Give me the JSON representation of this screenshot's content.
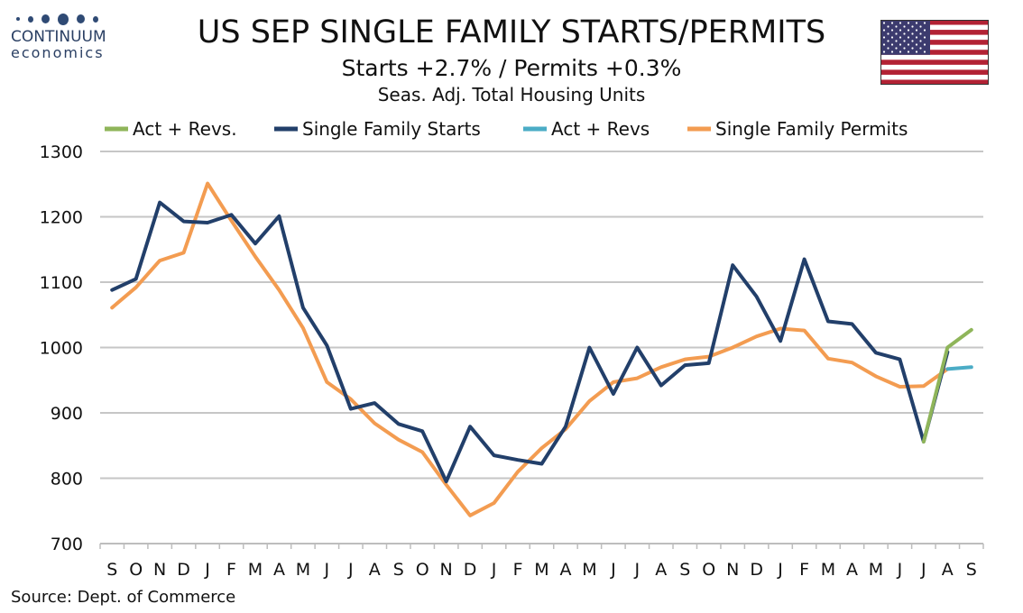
{
  "logo": {
    "line1": "CONTINUUM",
    "line2": "economics"
  },
  "header": {
    "title": "US SEP SINGLE FAMILY STARTS/PERMITS",
    "subtitle": "Starts  +2.7% / Permits +0.3%",
    "subtitle2": "Seas. Adj. Total Housing Units"
  },
  "flag": {
    "icon": "us-flag-icon"
  },
  "footer": {
    "source": "Source: Dept. of Commerce"
  },
  "chart_data": {
    "type": "line",
    "categories": [
      "S",
      "O",
      "N",
      "D",
      "J",
      "F",
      "M",
      "A",
      "M",
      "J",
      "J",
      "A",
      "S",
      "O",
      "N",
      "D",
      "J",
      "F",
      "M",
      "A",
      "M",
      "J",
      "J",
      "A",
      "S",
      "O",
      "N",
      "D",
      "J",
      "F",
      "M",
      "A",
      "M",
      "J",
      "J",
      "A",
      "S"
    ],
    "ylim": [
      700,
      1300
    ],
    "yticks": [
      700,
      800,
      900,
      1000,
      1100,
      1200,
      1300
    ],
    "grid": true,
    "legend_position": "top",
    "series": [
      {
        "name": "Act + Revs.",
        "color": "#8fb55a",
        "values": [
          null,
          null,
          null,
          null,
          null,
          null,
          null,
          null,
          null,
          null,
          null,
          null,
          null,
          null,
          null,
          null,
          null,
          null,
          null,
          null,
          null,
          null,
          null,
          null,
          null,
          null,
          null,
          null,
          null,
          null,
          null,
          null,
          null,
          null,
          856,
          1000,
          1027
        ]
      },
      {
        "name": "Single Family Starts",
        "color": "#223f6a",
        "values": [
          1088,
          1105,
          1222,
          1193,
          1191,
          1203,
          1159,
          1201,
          1061,
          1003,
          906,
          915,
          883,
          872,
          795,
          879,
          835,
          828,
          822,
          879,
          1000,
          929,
          1000,
          942,
          973,
          976,
          1126,
          1078,
          1010,
          1135,
          1040,
          1036,
          992,
          982,
          856,
          993,
          null
        ]
      },
      {
        "name": "Act + Revs",
        "color": "#4bacc6",
        "values": [
          null,
          null,
          null,
          null,
          null,
          null,
          null,
          null,
          null,
          null,
          null,
          null,
          null,
          null,
          null,
          null,
          null,
          null,
          null,
          null,
          null,
          null,
          null,
          null,
          null,
          null,
          null,
          null,
          null,
          null,
          null,
          null,
          null,
          null,
          null,
          967,
          970
        ]
      },
      {
        "name": "Single Family Permits",
        "color": "#f39c51",
        "values": [
          1061,
          1092,
          1133,
          1145,
          1251,
          1194,
          1139,
          1088,
          1030,
          947,
          921,
          884,
          859,
          840,
          790,
          743,
          762,
          810,
          846,
          875,
          918,
          947,
          953,
          970,
          982,
          986,
          1000,
          1017,
          1029,
          1026,
          983,
          977,
          956,
          940,
          941,
          967,
          null
        ]
      }
    ]
  }
}
